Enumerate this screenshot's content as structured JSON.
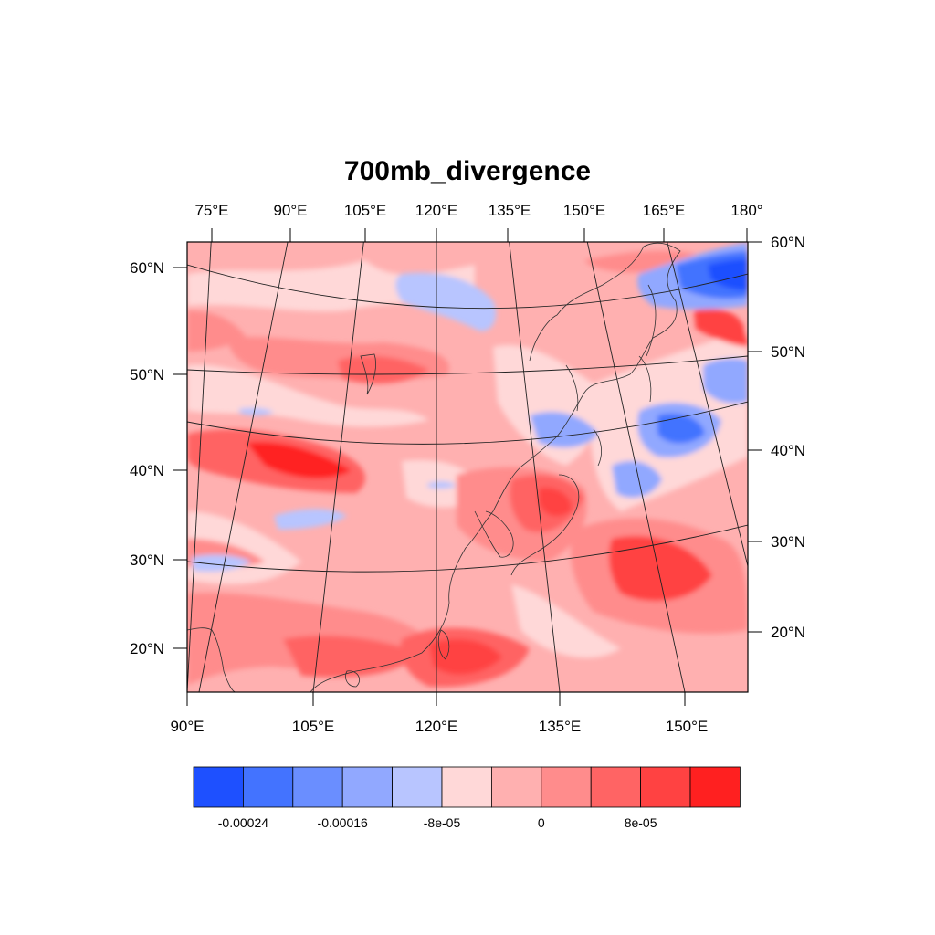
{
  "title": "700mb_divergence",
  "axes": {
    "top_lon_labels": [
      "75°E",
      "90°E",
      "105°E",
      "120°E",
      "135°E",
      "150°E",
      "165°E",
      "180°"
    ],
    "bottom_lon_labels": [
      "90°E",
      "105°E",
      "120°E",
      "135°E",
      "150°E"
    ],
    "left_lat_labels": [
      "60°N",
      "50°N",
      "40°N",
      "30°N",
      "20°N"
    ],
    "right_lat_labels": [
      "60°N",
      "50°N",
      "40°N",
      "30°N",
      "20°N"
    ]
  },
  "colorbar": {
    "colors": [
      "#1e50ff",
      "#4373ff",
      "#6a8eff",
      "#91a8ff",
      "#b8c5ff",
      "#ffd8d8",
      "#ffb0b0",
      "#ff8c8c",
      "#ff6464",
      "#ff4242",
      "#ff2020"
    ],
    "labels": [
      "-0.00024",
      "-0.00016",
      "-8e-05",
      "0",
      "8e-05"
    ]
  },
  "chart_data": {
    "type": "heatmap",
    "title": "700mb_divergence",
    "variable": "700mb divergence",
    "lon_range_deg_e": [
      90,
      160
    ],
    "lat_range_deg_n": [
      15,
      62
    ],
    "contour_levels": [
      -0.00028,
      -0.00024,
      -0.0002,
      -0.00016,
      -0.00012,
      -8e-05,
      -4e-05,
      0,
      4e-05,
      8e-05,
      0.00012
    ],
    "colorbar_tick_labels": [
      "-0.00024",
      "-0.00016",
      "-8e-05",
      "0",
      "8e-05"
    ]
  }
}
